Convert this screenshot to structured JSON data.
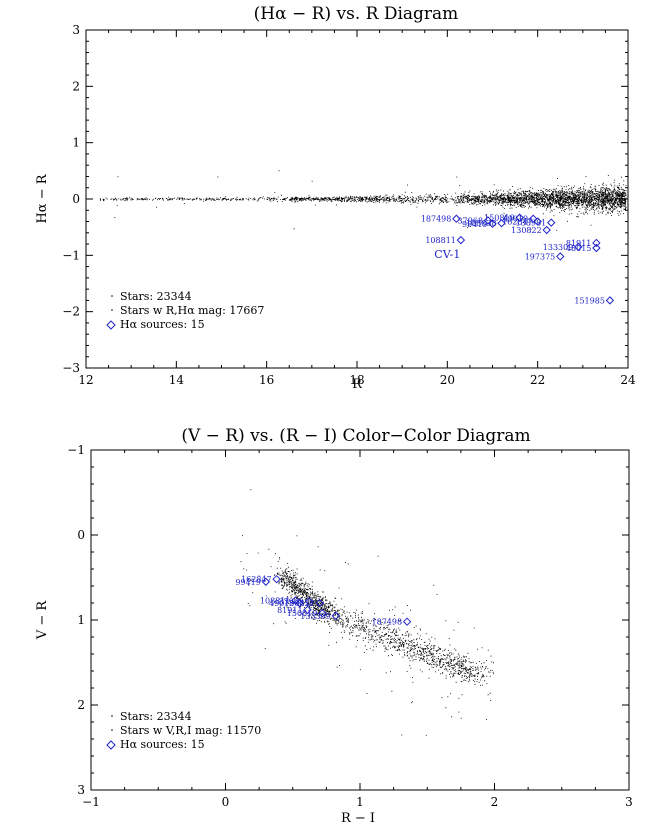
{
  "chart_data": [
    {
      "type": "scatter",
      "title": "(Hα − R) vs. R Diagram",
      "xlabel": "R",
      "ylabel": "Hα − R",
      "xlim": [
        12,
        24
      ],
      "ylim": [
        -3,
        3
      ],
      "y_inverted": false,
      "x_ticks": [
        12,
        14,
        16,
        18,
        20,
        22,
        24
      ],
      "y_ticks": [
        -3,
        -2,
        -1,
        0,
        1,
        2,
        3
      ],
      "x_tick_labels": [
        "12",
        "14",
        "16",
        "18",
        "20",
        "22",
        "24"
      ],
      "y_tick_labels": [
        "−3",
        "−2",
        "−1",
        "0",
        "1",
        "2",
        "3"
      ],
      "grid": false,
      "legend": {
        "placement": "bottom-left",
        "entries": [
          "Stars: 23344",
          "Stars w R,Hα mag: 17667",
          "Hα sources: 15"
        ]
      },
      "background_stars": {
        "count_label": 17667,
        "description": "dense locus near Hα−R = 0 widening toward faint R"
      },
      "halpha_sources": [
        {
          "id": "187498",
          "x": 20.2,
          "y": -0.35
        },
        {
          "id": "108811",
          "x": 20.3,
          "y": -0.73
        },
        {
          "id": "37968",
          "x": 20.9,
          "y": -0.38
        },
        {
          "id": "99419",
          "x": 21.0,
          "y": -0.44
        },
        {
          "id": "108838",
          "x": 21.2,
          "y": -0.43
        },
        {
          "id": "150819",
          "x": 21.6,
          "y": -0.33
        },
        {
          "id": "49019",
          "x": 21.9,
          "y": -0.35
        },
        {
          "id": "162847",
          "x": 22.0,
          "y": -0.4
        },
        {
          "id": "138981",
          "x": 22.3,
          "y": -0.42
        },
        {
          "id": "130822",
          "x": 22.2,
          "y": -0.55
        },
        {
          "id": "81911",
          "x": 23.3,
          "y": -0.78
        },
        {
          "id": "133309",
          "x": 22.9,
          "y": -0.85
        },
        {
          "id": "48015",
          "x": 23.3,
          "y": -0.87
        },
        {
          "id": "197375",
          "x": 22.5,
          "y": -1.02
        },
        {
          "id": "151985",
          "x": 23.6,
          "y": -1.8
        }
      ],
      "annotations": [
        {
          "text": "CV-1",
          "x": 20.0,
          "y": -1.05
        }
      ],
      "colors": {
        "stars": "#000000",
        "sources": "#1f24c9"
      }
    },
    {
      "type": "scatter",
      "title": "(V − R) vs. (R − I) Color−Color Diagram",
      "xlabel": "R − I",
      "ylabel": "V − R",
      "xlim": [
        -1,
        3
      ],
      "ylim": [
        -1,
        3
      ],
      "y_inverted": true,
      "x_ticks": [
        -1,
        0,
        1,
        2,
        3
      ],
      "y_ticks": [
        -1,
        0,
        1,
        2,
        3
      ],
      "x_tick_labels": [
        "−1",
        "0",
        "1",
        "2",
        "3"
      ],
      "y_tick_labels": [
        "−1",
        "0",
        "1",
        "2",
        "3"
      ],
      "grid": false,
      "legend": {
        "placement": "bottom-left",
        "entries": [
          "Stars: 23344",
          "Stars w V,R,I mag: 11570",
          "Hα sources: 15"
        ]
      },
      "background_stars": {
        "count_label": 11570,
        "description": "main-sequence band from (0.4, 0.45) to (1.9, 1.65)"
      },
      "halpha_sources": [
        {
          "id": "99419",
          "x": 0.3,
          "y": 0.55
        },
        {
          "id": "162847",
          "x": 0.38,
          "y": 0.52
        },
        {
          "id": "108811",
          "x": 0.52,
          "y": 0.77
        },
        {
          "id": "49019",
          "x": 0.55,
          "y": 0.8
        },
        {
          "id": "37968",
          "x": 0.62,
          "y": 0.78
        },
        {
          "id": "130822",
          "x": 0.7,
          "y": 0.8
        },
        {
          "id": "81911",
          "x": 0.61,
          "y": 0.88
        },
        {
          "id": "150819",
          "x": 0.72,
          "y": 0.92
        },
        {
          "id": "133309",
          "x": 0.82,
          "y": 0.95
        },
        {
          "id": "187498",
          "x": 1.35,
          "y": 1.02
        }
      ],
      "colors": {
        "stars": "#000000",
        "sources": "#1f24c9"
      }
    }
  ]
}
